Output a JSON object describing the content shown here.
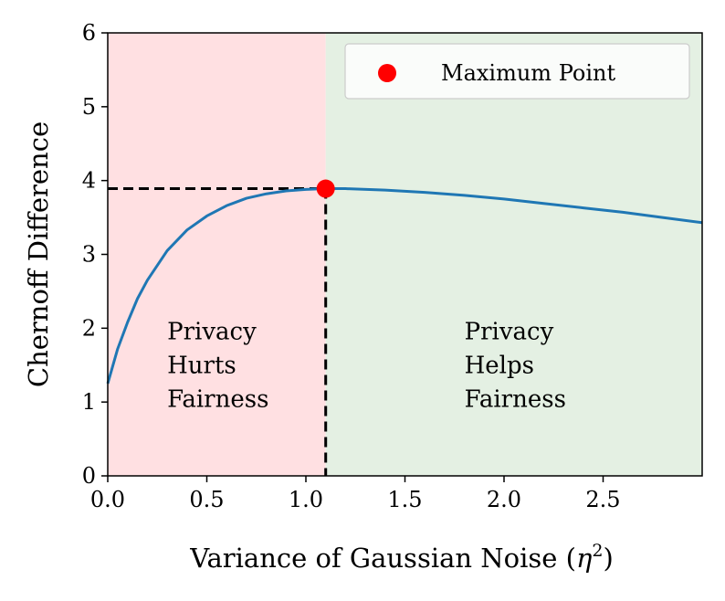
{
  "chart_data": {
    "type": "line",
    "xlabel": "Variance of Gaussian Noise (η²)",
    "xlabel_prefix": "Variance of Gaussian Noise (",
    "xlabel_symbol": "η",
    "xlabel_sup": "2",
    "xlabel_suffix": ")",
    "ylabel": "Chernoff Difference",
    "xlim": [
      0,
      3.0
    ],
    "ylim": [
      0,
      6
    ],
    "xticks": [
      0.0,
      0.5,
      1.0,
      1.5,
      2.0,
      2.5
    ],
    "xtick_labels": [
      "0.0",
      "0.5",
      "1.0",
      "1.5",
      "2.0",
      "2.5"
    ],
    "yticks": [
      0,
      1,
      2,
      3,
      4,
      5,
      6
    ],
    "ytick_labels": [
      "0",
      "1",
      "2",
      "3",
      "4",
      "5",
      "6"
    ],
    "grid": false,
    "series": [
      {
        "color": "#1f77b4",
        "x": [
          0.0,
          0.05,
          0.1,
          0.15,
          0.2,
          0.3,
          0.4,
          0.5,
          0.6,
          0.7,
          0.8,
          0.9,
          1.0,
          1.1,
          1.2,
          1.4,
          1.6,
          1.8,
          2.0,
          2.2,
          2.4,
          2.6,
          2.8,
          3.0
        ],
        "y": [
          1.25,
          1.72,
          2.08,
          2.4,
          2.65,
          3.05,
          3.33,
          3.52,
          3.66,
          3.76,
          3.82,
          3.86,
          3.88,
          3.89,
          3.89,
          3.87,
          3.84,
          3.8,
          3.75,
          3.69,
          3.63,
          3.57,
          3.5,
          3.43
        ]
      }
    ],
    "maximum_point": {
      "x": 1.1,
      "y": 3.89,
      "color": "#ff0000",
      "label": "Maximum Point"
    },
    "regions": [
      {
        "x_start": 0,
        "x_end": 1.1,
        "color": "#ffe0e2",
        "lines": [
          "Privacy",
          "Hurts",
          "Fairness"
        ],
        "text_x": 0.3,
        "text_y": 1.85
      },
      {
        "x_start": 1.1,
        "x_end": 3.0,
        "color": "#e4f0e3",
        "lines": [
          "Privacy",
          "Helps",
          "Fairness"
        ],
        "text_x": 1.8,
        "text_y": 1.85
      }
    ],
    "legend": {
      "location": "upper right",
      "entries": [
        "Maximum Point"
      ]
    }
  }
}
